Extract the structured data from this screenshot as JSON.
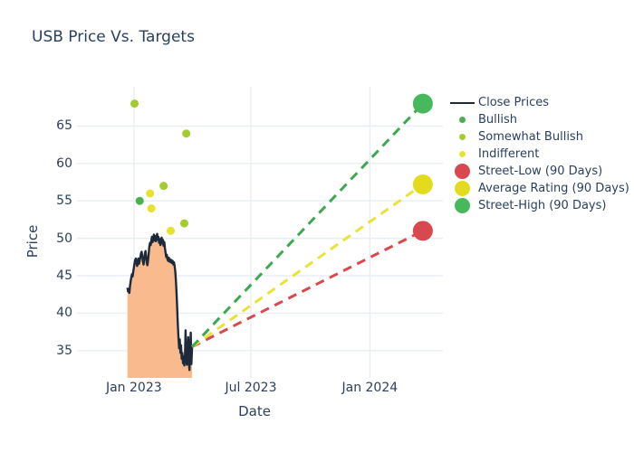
{
  "title": "USB Price Vs. Targets",
  "colors": {
    "text": "#2a3f5f",
    "grid": "#e9eef6",
    "close_line": "#1e2a3a",
    "close_fill": "#f9bb8e",
    "bullish": "#4daf50",
    "somewhat_bullish": "#a2cc30",
    "indifferent": "#e6e22f",
    "street_low": "#d9484e",
    "average_rating": "#e3dc1e",
    "street_high": "#47b85c"
  },
  "legend": {
    "items": [
      {
        "label": "Close Prices",
        "marker": "line",
        "color": "#1e2a3a"
      },
      {
        "label": "Bullish",
        "marker": "dot",
        "color": "#4daf50"
      },
      {
        "label": "Somewhat Bullish",
        "marker": "dot",
        "color": "#a2cc30"
      },
      {
        "label": "Indifferent",
        "marker": "dot",
        "color": "#e6e22f"
      },
      {
        "label": "Street-Low (90 Days)",
        "marker": "bigdot",
        "color": "#d9484e"
      },
      {
        "label": "Average Rating (90 Days)",
        "marker": "bigdot",
        "color": "#e3dc1e"
      },
      {
        "label": "Street-High (90 Days)",
        "marker": "bigdot",
        "color": "#47b85c"
      }
    ]
  },
  "chart_data": {
    "type": "line+scatter",
    "title": "USB Price Vs. Targets",
    "xlabel": "Date",
    "ylabel": "Price",
    "grid": true,
    "legend_position": "right",
    "x_axis": {
      "label": "Date",
      "ticks": [
        {
          "label": "Jan 2023",
          "day": 0
        },
        {
          "label": "Jul 2023",
          "day": 181
        },
        {
          "label": "Jan 2024",
          "day": 365
        }
      ],
      "range_days": [
        -88,
        478
      ]
    },
    "y_axis": {
      "label": "Price",
      "ticks": [
        35,
        40,
        45,
        50,
        55,
        60,
        65
      ],
      "range": [
        31.35,
        70.25
      ]
    },
    "close_prices": {
      "name": "Close Prices",
      "points": [
        [
          -10,
          43.4
        ],
        [
          -9,
          42.9
        ],
        [
          -8,
          43.2
        ],
        [
          -7,
          42.7
        ],
        [
          -6,
          43.6
        ],
        [
          -5,
          44.2
        ],
        [
          -4,
          44.8
        ],
        [
          -3,
          45.2
        ],
        [
          -2,
          44.9
        ],
        [
          -1,
          45.5
        ],
        [
          0,
          46.1
        ],
        [
          1,
          46.6
        ],
        [
          2,
          47.1
        ],
        [
          3,
          47.3
        ],
        [
          4,
          46.7
        ],
        [
          5,
          46.3
        ],
        [
          6,
          46.7
        ],
        [
          7,
          47.3
        ],
        [
          8,
          46.6
        ],
        [
          9,
          47.0
        ],
        [
          10,
          47.5
        ],
        [
          11,
          48.0
        ],
        [
          12,
          48.2
        ],
        [
          13,
          47.6
        ],
        [
          14,
          46.9
        ],
        [
          15,
          46.5
        ],
        [
          16,
          47.2
        ],
        [
          17,
          47.9
        ],
        [
          18,
          48.3
        ],
        [
          19,
          47.5
        ],
        [
          20,
          46.7
        ],
        [
          21,
          46.4
        ],
        [
          22,
          47.1
        ],
        [
          23,
          48.0
        ],
        [
          24,
          48.9
        ],
        [
          25,
          49.4
        ],
        [
          26,
          49.1
        ],
        [
          27,
          49.7
        ],
        [
          28,
          50.2
        ],
        [
          29,
          49.5
        ],
        [
          30,
          50.0
        ],
        [
          31,
          50.5
        ],
        [
          32,
          49.7
        ],
        [
          33,
          50.3
        ],
        [
          34,
          49.6
        ],
        [
          35,
          50.1
        ],
        [
          36,
          50.6
        ],
        [
          37,
          49.8
        ],
        [
          38,
          50.2
        ],
        [
          39,
          49.4
        ],
        [
          40,
          49.9
        ],
        [
          41,
          49.1
        ],
        [
          42,
          49.6
        ],
        [
          43,
          50.1
        ],
        [
          44,
          49.3
        ],
        [
          45,
          49.8
        ],
        [
          46,
          49.0
        ],
        [
          47,
          49.5
        ],
        [
          48,
          48.7
        ],
        [
          49,
          48.1
        ],
        [
          50,
          47.5
        ],
        [
          51,
          47.8
        ],
        [
          52,
          47.2
        ],
        [
          53,
          47.0
        ],
        [
          54,
          47.4
        ],
        [
          55,
          46.9
        ],
        [
          56,
          47.2
        ],
        [
          57,
          46.8
        ],
        [
          58,
          47.1
        ],
        [
          59,
          46.7
        ],
        [
          60,
          47.0
        ],
        [
          61,
          46.5
        ],
        [
          62,
          46.8
        ],
        [
          63,
          46.3
        ],
        [
          64,
          45.6
        ],
        [
          65,
          44.4
        ],
        [
          66,
          42.8
        ],
        [
          67,
          40.8
        ],
        [
          68,
          38.6
        ],
        [
          69,
          36.6
        ],
        [
          70,
          35.3
        ],
        [
          71,
          36.5
        ],
        [
          72,
          34.7
        ],
        [
          73,
          35.7
        ],
        [
          74,
          33.9
        ],
        [
          75,
          34.7
        ],
        [
          76,
          33.3
        ],
        [
          77,
          34.2
        ],
        [
          78,
          33.0
        ],
        [
          79,
          34.1
        ],
        [
          80,
          37.7
        ],
        [
          81,
          34.3
        ],
        [
          82,
          33.1
        ],
        [
          83,
          34.0
        ],
        [
          84,
          36.8
        ],
        [
          85,
          33.5
        ],
        [
          86,
          32.4
        ],
        [
          87,
          34.8
        ],
        [
          88,
          37.4
        ],
        [
          89,
          33.2
        ],
        [
          90,
          35.5
        ]
      ]
    },
    "ratings": [
      {
        "name": "Bullish",
        "color": "#4daf50",
        "points": [
          [
            9,
            55
          ]
        ]
      },
      {
        "name": "Somewhat Bullish",
        "color": "#a2cc30",
        "points": [
          [
            1,
            68
          ],
          [
            46,
            57
          ],
          [
            78,
            52
          ],
          [
            81,
            64
          ]
        ]
      },
      {
        "name": "Indifferent",
        "color": "#e6e22f",
        "points": [
          [
            25,
            56
          ],
          [
            27,
            54
          ],
          [
            57,
            51
          ]
        ]
      }
    ],
    "targets": [
      {
        "name": "Street-Low (90 Days)",
        "day": 447,
        "price": 51,
        "color": "#d9484e",
        "dash_color": "#d9484e"
      },
      {
        "name": "Average Rating (90 Days)",
        "day": 447,
        "price": 57.2,
        "color": "#e3dc1e",
        "dash_color": "#e8e337"
      },
      {
        "name": "Street-High (90 Days)",
        "day": 447,
        "price": 68,
        "color": "#47b85c",
        "dash_color": "#3da84f"
      }
    ]
  }
}
